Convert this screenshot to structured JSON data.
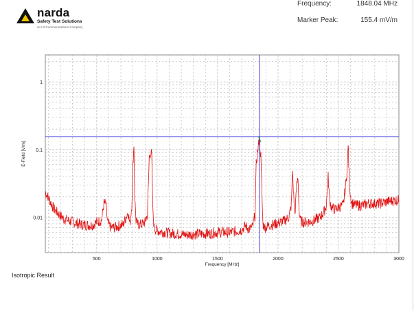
{
  "header": {
    "logo": {
      "brand": "narda",
      "subtitle": "Safety Test Solutions",
      "tagline": "an L3 Communications Company"
    },
    "frequency_label": "Frequency:",
    "frequency_value": "1848.04 MHz",
    "marker_label": "Marker Peak:",
    "marker_value": "155.4 mV/m"
  },
  "footer": {
    "result_label": "Isotropic Result"
  },
  "colors": {
    "trace": "#e01010",
    "marker": "#3a3ad8",
    "peak_highlight": "#38c020",
    "grid": "#b8b8b8"
  },
  "chart_data": {
    "type": "line",
    "title": "",
    "xlabel": "Frequency [MHz]",
    "ylabel": "E-Field [V/m]",
    "yscale": "log",
    "xlim": [
      75,
      3000
    ],
    "ylim": [
      0.003,
      2.5
    ],
    "x_ticks": [
      500,
      1000,
      1500,
      2000,
      2500,
      3000
    ],
    "y_ticks": [
      0.01,
      0.1,
      1
    ],
    "y_tick_labels": [
      "0.01",
      "0.1",
      "1"
    ],
    "grid": true,
    "marker": {
      "x": 1848.04,
      "y": 0.1554
    },
    "series": [
      {
        "x": [
          75,
          90,
          110,
          130,
          150,
          170,
          200,
          230,
          260,
          290,
          320,
          350,
          380,
          410,
          440,
          470,
          500,
          540,
          560,
          575,
          590,
          610,
          640,
          680,
          720,
          760,
          775,
          790,
          800,
          808,
          815,
          825,
          840,
          860,
          880,
          900,
          920,
          935,
          945,
          955,
          965,
          975,
          990,
          1020,
          1060,
          1100,
          1150,
          1200,
          1250,
          1300,
          1350,
          1400,
          1450,
          1500,
          1550,
          1600,
          1650,
          1700,
          1730,
          1760,
          1790,
          1810,
          1820,
          1830,
          1840,
          1845,
          1848,
          1852,
          1858,
          1865,
          1875,
          1890,
          1920,
          1960,
          2000,
          2050,
          2090,
          2110,
          2120,
          2130,
          2140,
          2155,
          2165,
          2175,
          2185,
          2200,
          2250,
          2300,
          2350,
          2380,
          2400,
          2415,
          2425,
          2440,
          2470,
          2500,
          2540,
          2560,
          2575,
          2580,
          2585,
          2595,
          2610,
          2650,
          2700,
          2750,
          2800,
          2850,
          2900,
          2950,
          3000
        ],
        "y": [
          0.024,
          0.021,
          0.018,
          0.015,
          0.013,
          0.012,
          0.0105,
          0.0095,
          0.009,
          0.0086,
          0.0083,
          0.008,
          0.0078,
          0.0077,
          0.0076,
          0.0077,
          0.0085,
          0.009,
          0.016,
          0.016,
          0.0085,
          0.0072,
          0.007,
          0.0074,
          0.0078,
          0.012,
          0.0078,
          0.015,
          0.06,
          0.12,
          0.02,
          0.009,
          0.0078,
          0.0078,
          0.008,
          0.0085,
          0.011,
          0.08,
          0.09,
          0.085,
          0.012,
          0.007,
          0.0065,
          0.0062,
          0.006,
          0.0058,
          0.0057,
          0.0056,
          0.0055,
          0.0056,
          0.0057,
          0.0057,
          0.0058,
          0.006,
          0.006,
          0.006,
          0.0062,
          0.0065,
          0.0075,
          0.0066,
          0.0072,
          0.011,
          0.06,
          0.09,
          0.12,
          0.1554,
          0.13,
          0.1,
          0.08,
          0.03,
          0.008,
          0.007,
          0.0075,
          0.0078,
          0.0082,
          0.0088,
          0.01,
          0.015,
          0.05,
          0.02,
          0.011,
          0.03,
          0.04,
          0.012,
          0.009,
          0.0085,
          0.0085,
          0.009,
          0.01,
          0.012,
          0.015,
          0.04,
          0.02,
          0.014,
          0.013,
          0.014,
          0.015,
          0.03,
          0.06,
          0.13,
          0.06,
          0.025,
          0.016,
          0.015,
          0.015,
          0.016,
          0.016,
          0.016,
          0.017,
          0.0175,
          0.018
        ]
      }
    ]
  }
}
